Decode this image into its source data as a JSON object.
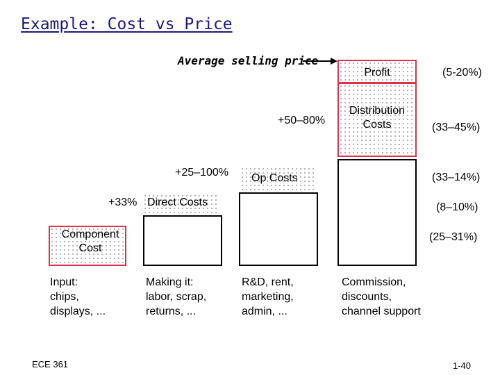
{
  "title": "Example: Cost vs Price",
  "average_selling_price_label": "Average selling price",
  "markups": {
    "dist": "+50–80%",
    "op": "+25–100%",
    "direct": "+33%"
  },
  "boxes": {
    "profit": "Profit",
    "distribution": "Distribution\nCosts",
    "op_costs": "Op Costs",
    "direct_costs": "Direct Costs",
    "component": "Component\nCost"
  },
  "percentages": {
    "profit": "(5-20%)",
    "distribution": "(33–45%)",
    "op_costs": "(33–14%)",
    "direct_costs": "(8–10%)",
    "component": "(25–31%)"
  },
  "descriptions": {
    "input": "Input:\nchips,\ndisplays, ...",
    "making": "Making it:\nlabor, scrap,\nreturns, ...",
    "rnd": "R&D, rent,\nmarketing,\nadmin, ...",
    "commission": "Commission,\ndiscounts,\nchannel support"
  },
  "footer": {
    "course": "ECE 361",
    "page": "1-40"
  }
}
